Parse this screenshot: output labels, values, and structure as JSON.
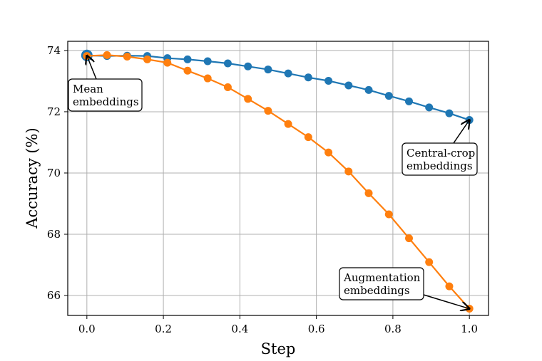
{
  "chart_data": {
    "type": "line",
    "title": "",
    "xlabel": "Step",
    "ylabel": "Accuracy (%)",
    "xlim": [
      -0.05,
      1.05
    ],
    "ylim": [
      65.35,
      74.3
    ],
    "xticks": [
      0.0,
      0.2,
      0.4,
      0.6,
      0.8,
      1.0
    ],
    "xtick_labels": [
      "0.0",
      "0.2",
      "0.4",
      "0.6",
      "0.8",
      "1.0"
    ],
    "yticks": [
      66,
      68,
      70,
      72,
      74
    ],
    "ytick_labels": [
      "66",
      "68",
      "70",
      "72",
      "74"
    ],
    "grid": true,
    "legend": "none",
    "series": [
      {
        "color": "#1f77b4",
        "x": [
          0.0,
          0.0526,
          0.1053,
          0.1579,
          0.2105,
          0.2632,
          0.3158,
          0.3684,
          0.4211,
          0.4737,
          0.5263,
          0.5789,
          0.6316,
          0.6842,
          0.7368,
          0.7895,
          0.8421,
          0.8947,
          0.9474,
          1.0
        ],
        "y": [
          73.84,
          73.82,
          73.83,
          73.82,
          73.75,
          73.71,
          73.65,
          73.58,
          73.48,
          73.38,
          73.25,
          73.12,
          73.01,
          72.86,
          72.71,
          72.52,
          72.34,
          72.14,
          71.95,
          71.73
        ]
      },
      {
        "color": "#ff7f0e",
        "x": [
          0.0,
          0.0526,
          0.1053,
          0.1579,
          0.2105,
          0.2632,
          0.3158,
          0.3684,
          0.4211,
          0.4737,
          0.5263,
          0.5789,
          0.6316,
          0.6842,
          0.7368,
          0.7895,
          0.8421,
          0.8947,
          0.9474,
          1.0
        ],
        "y": [
          73.82,
          73.85,
          73.8,
          73.71,
          73.6,
          73.34,
          73.09,
          72.8,
          72.42,
          72.03,
          71.6,
          71.17,
          70.67,
          70.05,
          69.34,
          68.65,
          67.87,
          67.09,
          66.3,
          65.57
        ]
      }
    ],
    "annotations": [
      {
        "lines": [
          "Mean",
          "embeddings"
        ],
        "point": [
          0.0,
          73.83
        ]
      },
      {
        "lines": [
          "Central-crop",
          "embeddings"
        ],
        "point": [
          1.0,
          71.73
        ]
      },
      {
        "lines": [
          "Augmentation",
          "embeddings"
        ],
        "point": [
          1.0,
          65.57
        ]
      }
    ]
  }
}
